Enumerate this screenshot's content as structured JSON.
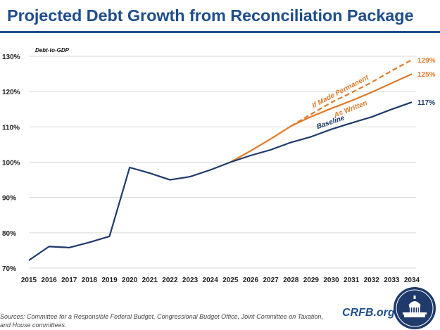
{
  "title": "Projected Debt Growth from Reconciliation Package",
  "sources": "Sources: Committee for a Responsible Federal Budget, Congressional Budget Office, Joint Committee on Taxation, and House committees.",
  "brand": "CRFB.org",
  "colors": {
    "navy": "#1f3a6b",
    "orange": "#e07b2a",
    "title": "#1f4e8c",
    "grid": "#d9d9d9"
  },
  "chart_data": {
    "type": "line",
    "ylabel": "Debt-to-GDP",
    "xlabel": "",
    "ylim": [
      70,
      130
    ],
    "yticks": [
      70,
      80,
      90,
      100,
      110,
      120,
      130
    ],
    "ytick_labels": [
      "70%",
      "80%",
      "90%",
      "100%",
      "110%",
      "120%",
      "130%"
    ],
    "x": [
      2015,
      2016,
      2017,
      2018,
      2019,
      2020,
      2021,
      2022,
      2023,
      2024,
      2025,
      2026,
      2027,
      2028,
      2029,
      2030,
      2031,
      2032,
      2033,
      2034
    ],
    "grid": "horizontal",
    "series": [
      {
        "name": "Baseline",
        "color": "#1f3a6b",
        "style": "solid",
        "x": [
          2015,
          2016,
          2017,
          2018,
          2019,
          2020,
          2021,
          2022,
          2023,
          2024,
          2025,
          2026,
          2027,
          2028,
          2029,
          2030,
          2031,
          2032,
          2033,
          2034
        ],
        "values": [
          72.2,
          76.1,
          75.8,
          77.3,
          79.0,
          98.5,
          96.9,
          95.0,
          95.9,
          97.8,
          100.0,
          101.9,
          103.5,
          105.6,
          107.2,
          109.3,
          111.1,
          112.8,
          115.0,
          117.0
        ],
        "end_label": "117%"
      },
      {
        "name": "As Written",
        "color": "#e07b2a",
        "style": "solid",
        "x": [
          2025,
          2026,
          2027,
          2028,
          2029,
          2030,
          2031,
          2032,
          2033,
          2034
        ],
        "values": [
          100.0,
          103.2,
          106.6,
          110.2,
          112.9,
          115.2,
          117.4,
          119.8,
          122.4,
          125.0
        ],
        "end_label": "125%"
      },
      {
        "name": "If Made Permanent",
        "color": "#e07b2a",
        "style": "dashed",
        "x": [
          2028,
          2029,
          2030,
          2031,
          2032,
          2033,
          2034
        ],
        "values": [
          110.2,
          113.6,
          116.9,
          119.7,
          122.6,
          125.9,
          129.0
        ],
        "end_label": "129%"
      }
    ]
  }
}
